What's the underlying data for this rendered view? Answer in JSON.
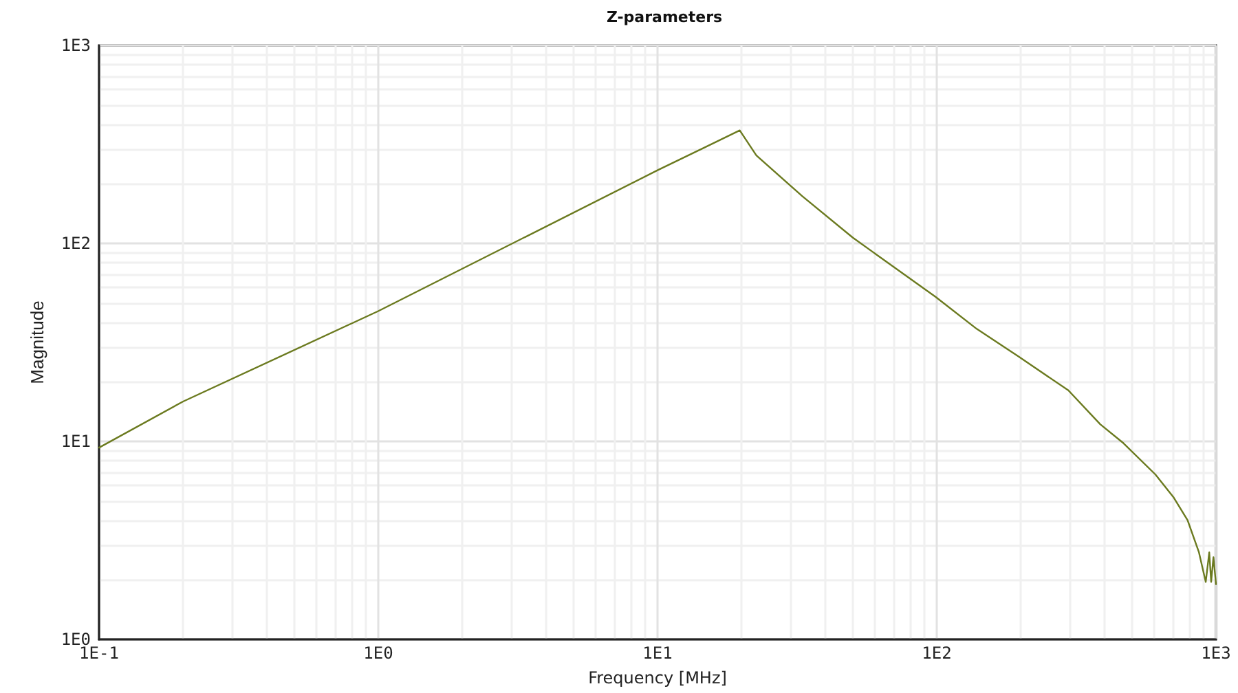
{
  "chart_data": {
    "type": "line",
    "title": "Z-parameters",
    "xlabel": "Frequency [MHz]",
    "ylabel": "Magnitude",
    "log": "xy",
    "grid": true,
    "marker": "none",
    "line_style": "solid",
    "xlim": [
      0.1,
      1000
    ],
    "ylim": [
      1,
      1000
    ],
    "xticks": [
      {
        "value": 0.1,
        "label": "1E-1"
      },
      {
        "value": 1,
        "label": "1E0"
      },
      {
        "value": 10,
        "label": "1E1"
      },
      {
        "value": 100,
        "label": "1E2"
      },
      {
        "value": 1000,
        "label": "1E3"
      }
    ],
    "yticks": [
      {
        "value": 1,
        "label": "1E0"
      },
      {
        "value": 10,
        "label": "1E1"
      },
      {
        "value": 100,
        "label": "1E2"
      },
      {
        "value": 1000,
        "label": "1E3"
      }
    ],
    "series": [
      {
        "color": "#6b7a1f",
        "x": [
          0.1,
          0.2,
          1,
          10,
          19.7,
          22.6,
          33,
          50,
          99,
          139,
          195,
          296,
          385,
          466,
          607,
          706,
          791,
          869,
          919,
          946,
          961,
          979,
          1000
        ],
        "values": [
          9.3,
          15.9,
          45.5,
          234,
          372,
          278,
          173,
          107,
          53.7,
          37,
          27,
          18.1,
          12.2,
          9.8,
          6.8,
          5.2,
          4.0,
          2.75,
          1.95,
          2.75,
          1.95,
          2.6,
          1.9
        ]
      }
    ]
  }
}
